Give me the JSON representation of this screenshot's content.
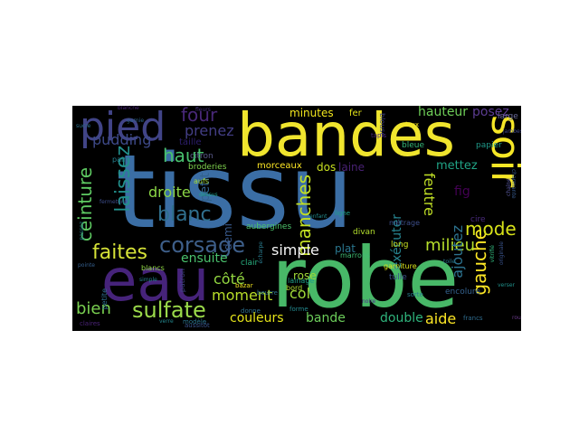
{
  "words": [
    {
      "text": "tissu",
      "color": "#3b6ea5"
    },
    {
      "text": "robe",
      "color": "#48b868"
    },
    {
      "text": "bandes",
      "color": "#f0e52e"
    },
    {
      "text": "eau",
      "color": "#46237a"
    },
    {
      "text": "pied",
      "color": "#414487"
    },
    {
      "text": "soir",
      "color": "#f5e626"
    },
    {
      "text": "corsage",
      "color": "#3e5f8a"
    },
    {
      "text": "sulfate",
      "color": "#9ad94a"
    },
    {
      "text": "laissez",
      "color": "#22908c"
    },
    {
      "text": "ceinture",
      "color": "#5ec962"
    },
    {
      "text": "faites",
      "color": "#d6e237"
    },
    {
      "text": "blanc",
      "color": "#30708e"
    },
    {
      "text": "manches",
      "color": "#c2df23"
    },
    {
      "text": "haut",
      "color": "#48c16e"
    },
    {
      "text": "gauche",
      "color": "#fde725"
    },
    {
      "text": "mode",
      "color": "#d7e219"
    },
    {
      "text": "bien",
      "color": "#7ad151"
    },
    {
      "text": "four",
      "color": "#482878"
    },
    {
      "text": "pudding",
      "color": "#3e4a89"
    },
    {
      "text": "prenez",
      "color": "#433e85"
    },
    {
      "text": "droite",
      "color": "#8bd646"
    },
    {
      "text": "petit",
      "color": "#33638d"
    },
    {
      "text": "milieu",
      "color": "#b5de2b"
    },
    {
      "text": "ensuite",
      "color": "#4ac16d"
    },
    {
      "text": "moment",
      "color": "#b8de29"
    },
    {
      "text": "couleurs",
      "color": "#e5e419"
    },
    {
      "text": "ajoutez",
      "color": "#2c728e"
    },
    {
      "text": "col",
      "color": "#a0da39"
    },
    {
      "text": "côté",
      "color": "#93d741"
    },
    {
      "text": "simple",
      "color": "#f5f5f5"
    },
    {
      "text": "double",
      "color": "#2fb47c"
    },
    {
      "text": "aide",
      "color": "#fde725"
    },
    {
      "text": "bande",
      "color": "#6ccd5a"
    },
    {
      "text": "feutre",
      "color": "#c0df25"
    },
    {
      "text": "exécuter",
      "color": "#26828e"
    },
    {
      "text": "mettez",
      "color": "#20a486"
    },
    {
      "text": "hauteur",
      "color": "#6ece58"
    },
    {
      "text": "posez",
      "color": "#5c3c92"
    },
    {
      "text": "minutes",
      "color": "#f1e51d"
    },
    {
      "text": "dos",
      "color": "#c8e020"
    },
    {
      "text": "laine",
      "color": "#482173"
    },
    {
      "text": "fig",
      "color": "#440154"
    },
    {
      "text": "demi",
      "color": "#38598c"
    },
    {
      "text": "rose",
      "color": "#a2da37"
    },
    {
      "text": "plat",
      "color": "#2a768e"
    },
    {
      "text": "morceaux",
      "color": "#fde725"
    },
    {
      "text": "taille",
      "color": "#2d1e6e"
    },
    {
      "text": "aubergines",
      "color": "#4cc26c"
    },
    {
      "text": "fer",
      "color": "#e4e419"
    },
    {
      "text": "tulle",
      "color": "#3b528b"
    },
    {
      "text": "long",
      "color": "#c5e021"
    },
    {
      "text": "divan",
      "color": "#b2dd2d"
    },
    {
      "text": "encolure",
      "color": "#34618d"
    },
    {
      "text": "large",
      "color": "#6b6b9a"
    },
    {
      "text": "cire",
      "color": "#4a2b7d"
    },
    {
      "text": "papier",
      "color": "#1f9a8a"
    },
    {
      "text": "bleue",
      "color": "#35b779"
    },
    {
      "text": "citron",
      "color": "#5a5a8a"
    },
    {
      "text": "broderies",
      "color": "#7fd34e"
    },
    {
      "text": "lainage",
      "color": "#1f9e89"
    },
    {
      "text": "garniture",
      "color": "#d8e219"
    },
    {
      "text": "marrons",
      "color": "#3fbc73"
    },
    {
      "text": "bord",
      "color": "#b0dd2f"
    },
    {
      "text": "blouse",
      "color": "#414487"
    },
    {
      "text": "clair",
      "color": "#29af7f"
    },
    {
      "text": "métrage",
      "color": "#3d4e8a"
    },
    {
      "text": "patron",
      "color": "#404688"
    },
    {
      "text": "petite",
      "color": "#2e6e8e"
    },
    {
      "text": "blancs",
      "color": "#90d743"
    },
    {
      "text": "pain",
      "color": "#27808e"
    },
    {
      "text": "forme",
      "color": "#23898e"
    },
    {
      "text": "aufs",
      "color": "#a5db36"
    },
    {
      "text": "donne",
      "color": "#2d708e"
    },
    {
      "text": "bazar",
      "color": "#f3e51e"
    },
    {
      "text": "sorte",
      "color": "#287c8e"
    },
    {
      "text": "francs",
      "color": "#2f6c8e"
    },
    {
      "text": "vieux",
      "color": "#f6e620"
    },
    {
      "text": "ligne",
      "color": "#1fa187"
    },
    {
      "text": "blanche",
      "color": "#482576"
    },
    {
      "text": "modèle",
      "color": "#2b758e"
    },
    {
      "text": "claires",
      "color": "#4a2377"
    },
    {
      "text": "aussitôt",
      "color": "#3a548c"
    },
    {
      "text": "beurre",
      "color": "#2c738e"
    },
    {
      "text": "fleurs",
      "color": "#46327e"
    },
    {
      "text": "chaîne",
      "color": "#5a5aa0"
    },
    {
      "text": "tapis",
      "color": "#4b2a7c"
    },
    {
      "text": "jambes",
      "color": "#3f4889"
    },
    {
      "text": "toile",
      "color": "#2a788e"
    },
    {
      "text": "garnie",
      "color": "#31688e"
    },
    {
      "text": "verser",
      "color": "#20928c"
    },
    {
      "text": "passez",
      "color": "#25858e"
    },
    {
      "text": "écharpe",
      "color": "#2a7b8e"
    },
    {
      "text": "simple",
      "color": "#26818e"
    },
    {
      "text": "vitrifié",
      "color": "#31b57b"
    },
    {
      "text": "charmante",
      "color": "#375a8c"
    },
    {
      "text": "originale",
      "color": "#3a538b"
    },
    {
      "text": "enfant",
      "color": "#228b8d"
    },
    {
      "text": "noire",
      "color": "#4f2e8a"
    },
    {
      "text": "rouge",
      "color": "#6a3a8a"
    },
    {
      "text": "dessus",
      "color": "#1fa088"
    },
    {
      "text": "fermeture",
      "color": "#3d4d8a"
    },
    {
      "text": "pointe",
      "color": "#355f8d"
    },
    {
      "text": "verre",
      "color": "#24878e"
    },
    {
      "text": "sucre",
      "color": "#2c728e"
    }
  ]
}
